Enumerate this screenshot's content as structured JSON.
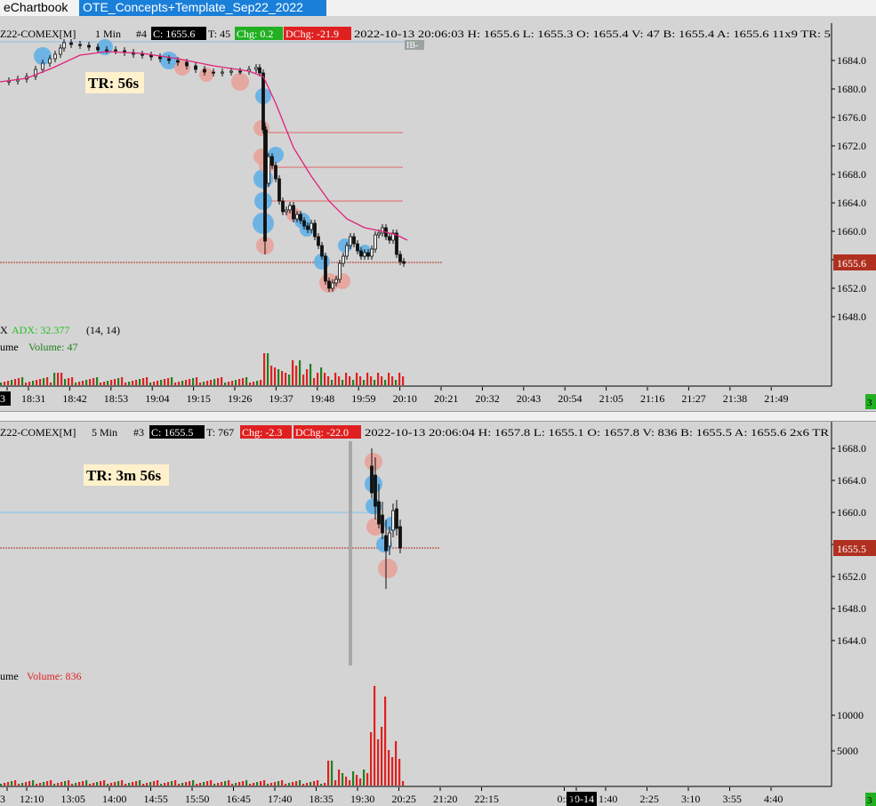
{
  "tabs": [
    {
      "label": "eChartbook"
    },
    {
      "label": "OTE_Concepts+Template_Sep22_2022"
    }
  ],
  "chart1": {
    "header": {
      "symbol": "Z22-COMEX[M]",
      "interval": "1 Min",
      "num": "#4",
      "close": "C: 1655.6",
      "trades": "T: 45",
      "chg": "Chg: 0.2",
      "dchg": "DChg: -21.9",
      "rest": "2022-10-13 20:06:03 H: 1655.6 L: 1655.3 O: 1655.4 V: 47 B: 1655.4 A: 1655.6 11x9 TR: 5"
    },
    "tag": "IB-",
    "timer": "TR: 56s",
    "y_ticks": [
      "1684.0",
      "1680.0",
      "1676.0",
      "1672.0",
      "1668.0",
      "1664.0",
      "1660.0",
      "1656.0",
      "1652.0",
      "1648.0"
    ],
    "price_label": "1655.6",
    "adx_prefix": "X",
    "adx_label": "ADX: 32.377",
    "adx_params": "(14, 14)",
    "volume_prefix": "ume",
    "volume_label": "Volume: 47",
    "x_ticks": [
      "3",
      "18:31",
      "18:42",
      "18:53",
      "19:04",
      "19:15",
      "19:26",
      "19:37",
      "19:48",
      "19:59",
      "20:10",
      "20:21",
      "20:32",
      "20:43",
      "20:54",
      "21:05",
      "21:16",
      "21:27",
      "21:38",
      "21:49"
    ],
    "corner": "3",
    "colors": {
      "chg_bg": "#22b022",
      "dchg_bg": "#e02020",
      "price_box": "#b03020",
      "ma": "#e0207a",
      "adx": "#22c022"
    }
  },
  "chart2": {
    "header": {
      "symbol": "Z22-COMEX[M]",
      "interval": "5 Min",
      "num": "#3",
      "close": "C: 1655.5",
      "trades": "T: 767",
      "chg": "Chg: -2.3",
      "dchg": "DChg: -22.0",
      "rest": "2022-10-13 20:06:04 H: 1657.8 L: 1655.1 O: 1657.8 V: 836 B: 1655.5 A: 1655.6 2x6 TR"
    },
    "timer": "TR: 3m 56s",
    "y_ticks": [
      "1668.0",
      "1664.0",
      "1660.0",
      "1656.0",
      "1652.0",
      "1648.0",
      "1644.0"
    ],
    "price_label": "1655.5",
    "volume_prefix": "ume",
    "volume_label": "Volume: 836",
    "volume_ticks": [
      "10000",
      "5000"
    ],
    "x_ticks": [
      "3",
      "12:10",
      "13:05",
      "14:00",
      "14:55",
      "15:50",
      "16:45",
      "17:40",
      "18:35",
      "19:30",
      "20:25",
      "21:20",
      "22:15",
      "10-14",
      "0:55",
      "1:40",
      "2:25",
      "3:10",
      "3:55",
      "4:40"
    ],
    "corner": "3"
  }
}
